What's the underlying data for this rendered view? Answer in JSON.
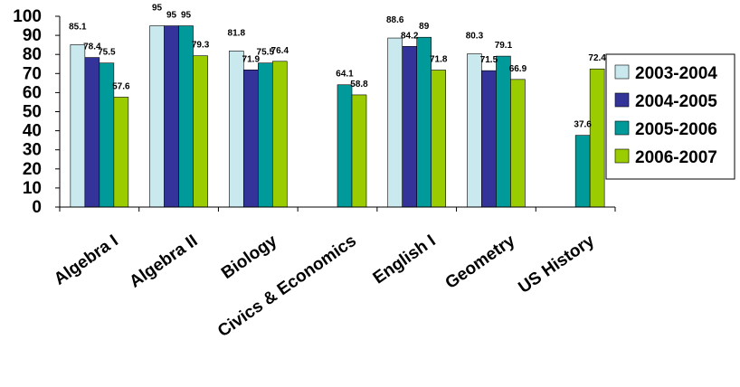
{
  "chart_data": {
    "type": "bar",
    "title": "",
    "xlabel": "",
    "ylabel": "",
    "ylim": [
      0,
      100
    ],
    "yticks": [
      0,
      10,
      20,
      30,
      40,
      50,
      60,
      70,
      80,
      90,
      100
    ],
    "categories": [
      "Algebra I",
      "Algebra II",
      "Biology",
      "Civics & Economics",
      "English I",
      "Geometry",
      "US History"
    ],
    "series": [
      {
        "name": "2003-2004",
        "color": "#c9e9ee",
        "values": [
          85.1,
          95,
          81.8,
          null,
          88.6,
          80.3,
          null
        ]
      },
      {
        "name": "2004-2005",
        "color": "#33339a",
        "values": [
          78.4,
          95,
          71.9,
          null,
          84.2,
          71.5,
          null
        ]
      },
      {
        "name": "2005-2006",
        "color": "#009a9a",
        "values": [
          75.5,
          95,
          75.5,
          64.1,
          89,
          79.1,
          37.6
        ]
      },
      {
        "name": "2006-2007",
        "color": "#9acc00",
        "values": [
          57.6,
          79.3,
          76.4,
          58.8,
          71.8,
          66.9,
          72.4
        ]
      }
    ],
    "grid": false,
    "legend_position": "right"
  }
}
